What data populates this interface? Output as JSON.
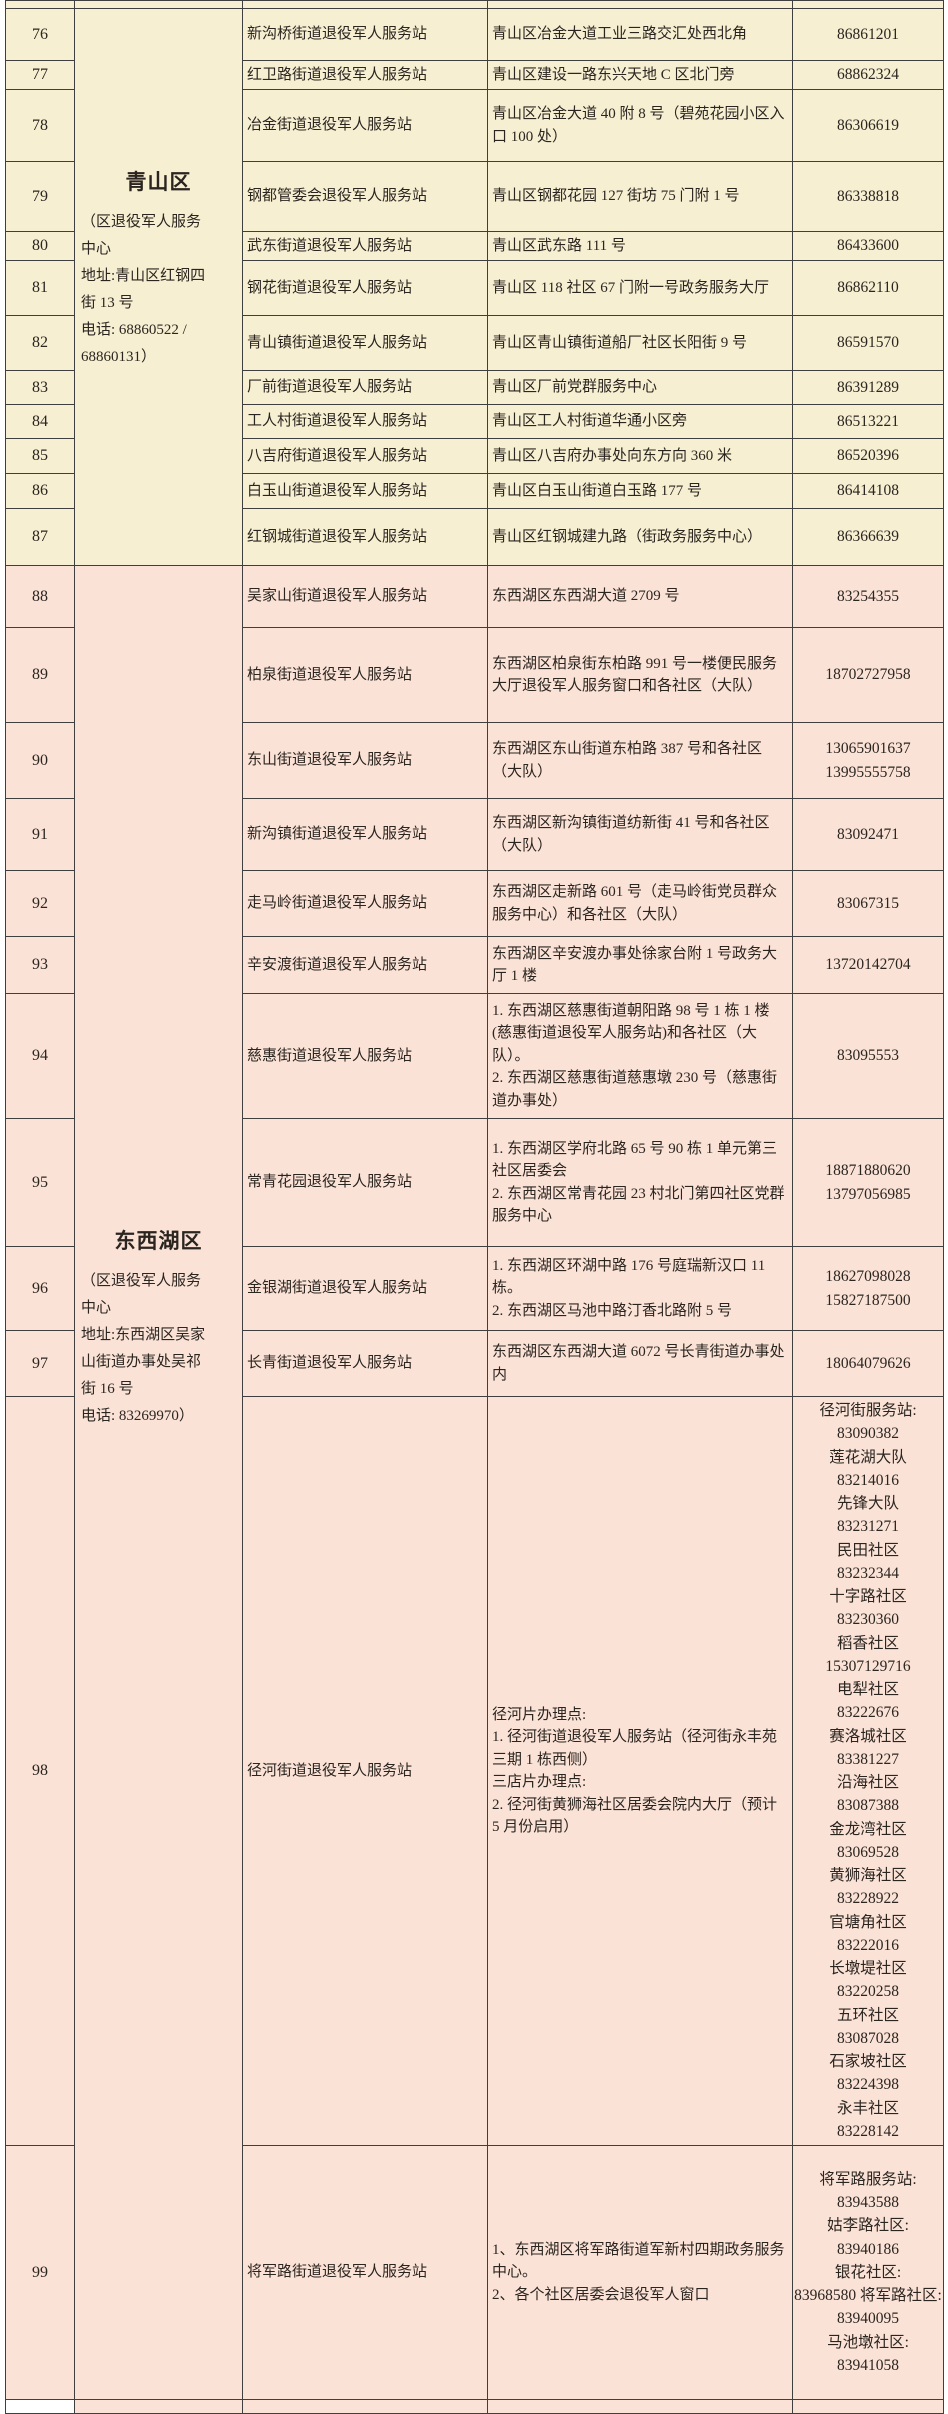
{
  "colors": {
    "qingshan_section_bg": "#f7efd2",
    "dongxihu_section_bg": "#fbe2d7",
    "grid_border": "#3f3f3f",
    "text": "#2b2520"
  },
  "table": {
    "districts": [
      {
        "name": "青山区",
        "note": "（区退役军人服务\n中心\n地址:青山区红钢四\n街 13 号\n电话: 68860522 /\n68860131）"
      },
      {
        "name": "东西湖区",
        "note": "（区退役军人服务\n中心\n地址:东西湖区吴家\n山街道办事处吴祁\n街 16 号\n电话: 83269970）"
      }
    ],
    "rows": [
      {
        "num": "76",
        "station": "新沟桥街道退役军人服务站",
        "address": "青山区冶金大道工业三路交汇处西北角",
        "phone": "86861201"
      },
      {
        "num": "77",
        "station": "红卫路街道退役军人服务站",
        "address": "青山区建设一路东兴天地 C 区北门旁",
        "phone": "68862324"
      },
      {
        "num": "78",
        "station": "冶金街道退役军人服务站",
        "address": "青山区冶金大道 40 附 8 号（碧苑花园小区入口 100 处）",
        "phone": "86306619"
      },
      {
        "num": "79",
        "station": "钢都管委会退役军人服务站",
        "address": "青山区钢都花园 127 街坊 75 门附 1 号",
        "phone": "86338818"
      },
      {
        "num": "80",
        "station": "武东街道退役军人服务站",
        "address": "青山区武东路 111 号",
        "phone": "86433600"
      },
      {
        "num": "81",
        "station": "钢花街道退役军人服务站",
        "address": "青山区 118 社区 67 门附一号政务服务大厅",
        "phone": "86862110"
      },
      {
        "num": "82",
        "station": "青山镇街道退役军人服务站",
        "address": "青山区青山镇街道船厂社区长阳街 9 号",
        "phone": "86591570"
      },
      {
        "num": "83",
        "station": "厂前街道退役军人服务站",
        "address": "青山区厂前党群服务中心",
        "phone": "86391289"
      },
      {
        "num": "84",
        "station": "工人村街道退役军人服务站",
        "address": "青山区工人村街道华通小区旁",
        "phone": "86513221"
      },
      {
        "num": "85",
        "station": "八吉府街道退役军人服务站",
        "address": "青山区八吉府办事处向东方向 360 米",
        "phone": "86520396"
      },
      {
        "num": "86",
        "station": "白玉山街道退役军人服务站",
        "address": "青山区白玉山街道白玉路 177 号",
        "phone": "86414108"
      },
      {
        "num": "87",
        "station": "红钢城街道退役军人服务站",
        "address": "青山区红钢城建九路（街政务服务中心）",
        "phone": "86366639"
      },
      {
        "num": "88",
        "station": "吴家山街道退役军人服务站",
        "address": "东西湖区东西湖大道 2709 号",
        "phone": "83254355"
      },
      {
        "num": "89",
        "station": "柏泉街道退役军人服务站",
        "address": "东西湖区柏泉街东柏路 991 号一楼便民服务大厅退役军人服务窗口和各社区（大队）",
        "phone": "18702727958"
      },
      {
        "num": "90",
        "station": "东山街道退役军人服务站",
        "address": "东西湖区东山街道东柏路 387 号和各社区（大队）",
        "phone": "13065901637\n13995555758"
      },
      {
        "num": "91",
        "station": "新沟镇街道退役军人服务站",
        "address": "东西湖区新沟镇街道纺新街 41 号和各社区（大队）",
        "phone": "83092471"
      },
      {
        "num": "92",
        "station": "走马岭街道退役军人服务站",
        "address": "东西湖区走新路 601 号（走马岭街党员群众服务中心）和各社区（大队）",
        "phone": "83067315"
      },
      {
        "num": "93",
        "station": "辛安渡街道退役军人服务站",
        "address": "东西湖区辛安渡办事处徐家台附 1 号政务大厅 1 楼",
        "phone": "13720142704"
      },
      {
        "num": "94",
        "station": "慈惠街道退役军人服务站",
        "address": "1. 东西湖区慈惠街道朝阳路 98 号 1 栋 1 楼(慈惠街道退役军人服务站)和各社区（大队）。\n2. 东西湖区慈惠街道慈惠墩 230 号（慈惠街道办事处）",
        "phone": "83095553"
      },
      {
        "num": "95",
        "station": "常青花园退役军人服务站",
        "address": "1. 东西湖区学府北路 65 号 90 栋 1 单元第三社区居委会\n2. 东西湖区常青花园 23 村北门第四社区党群服务中心",
        "phone": "18871880620\n13797056985"
      },
      {
        "num": "96",
        "station": "金银湖街道退役军人服务站",
        "address": "1. 东西湖区环湖中路 176 号庭瑞新汉口 11 栋。\n2. 东西湖区马池中路汀香北路附 5 号",
        "phone": "18627098028\n15827187500"
      },
      {
        "num": "97",
        "station": "长青街道退役军人服务站",
        "address": "东西湖区东西湖大道 6072 号长青街道办事处内",
        "phone": "18064079626"
      },
      {
        "num": "98",
        "station": "径河街道退役军人服务站",
        "address": "径河片办理点:\n1. 径河街道退役军人服务站（径河街永丰苑三期 1 栋西侧）\n三店片办理点:\n2. 径河街黄狮海社区居委会院内大厅（预计 5 月份启用）",
        "phone": "径河街服务站:\n83090382\n莲花湖大队\n83214016\n先锋大队\n83231271\n民田社区\n83232344\n十字路社区\n83230360\n稻香社区\n15307129716\n电犁社区\n83222676\n赛洛城社区\n83381227\n沿海社区\n83087388\n金龙湾社区\n83069528\n黄狮海社区\n83228922\n官塘角社区\n83222016\n长墩堤社区\n83220258\n五环社区\n83087028\n石家坡社区\n83224398\n永丰社区\n83228142"
      },
      {
        "num": "99",
        "station": "将军路街道退役军人服务站",
        "address": "1、东西湖区将军路街道军新村四期政务服务中心。\n2、各个社区居委会退役军人窗口",
        "phone": "将军路服务站:\n83943588\n姑李路社区:\n83940186\n银花社区:\n83968580  将军路社区: 83940095\n马池墩社区:\n83941058"
      }
    ]
  }
}
